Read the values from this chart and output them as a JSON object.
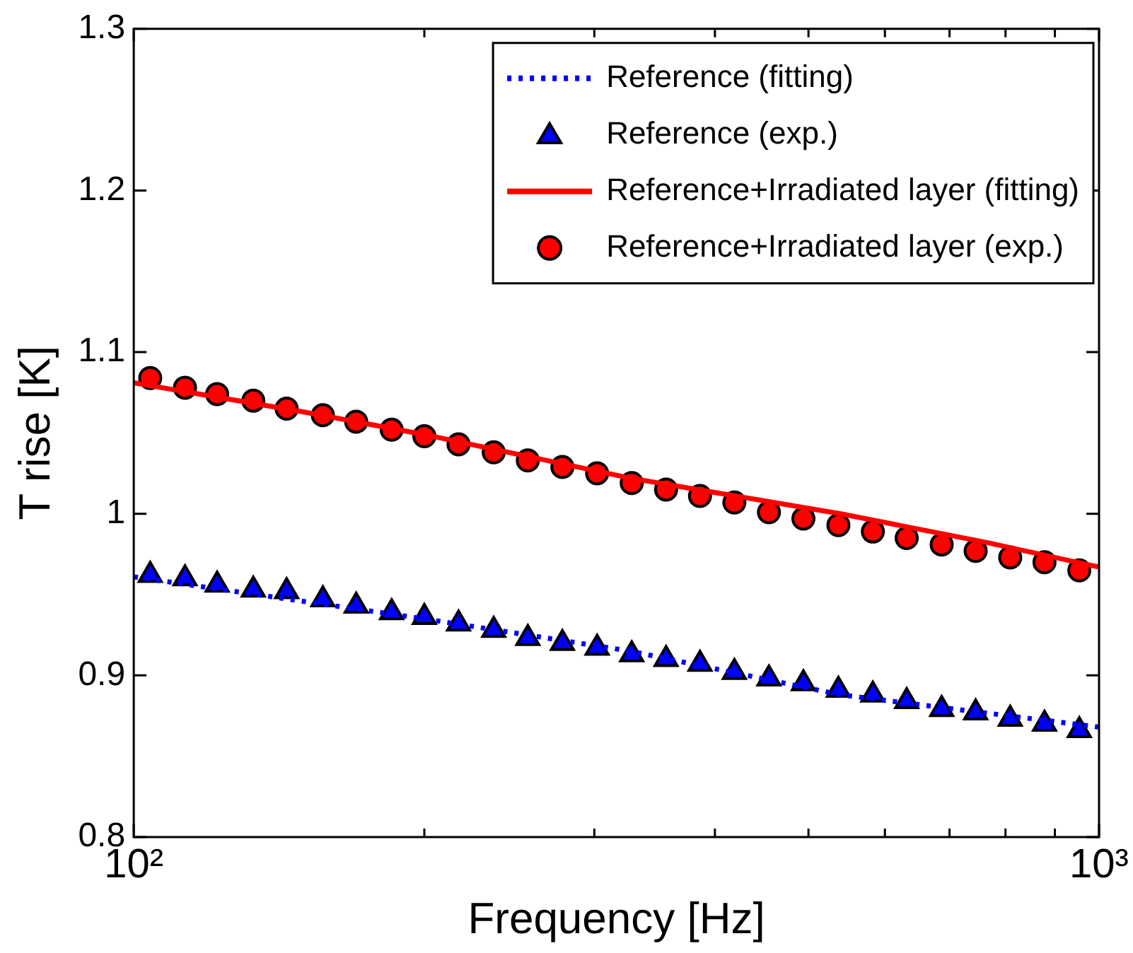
{
  "chart_data": {
    "type": "line",
    "xlabel": "Frequency [Hz]",
    "ylabel": "T rise [K]",
    "log": "x",
    "xlim": [
      100,
      1000
    ],
    "xticks": [
      {
        "value": 100,
        "label": "10²"
      },
      {
        "value": 200,
        "label": null
      },
      {
        "value": 300,
        "label": null
      },
      {
        "value": 400,
        "label": null
      },
      {
        "value": 500,
        "label": null
      },
      {
        "value": 600,
        "label": null
      },
      {
        "value": 700,
        "label": null
      },
      {
        "value": 800,
        "label": null
      },
      {
        "value": 900,
        "label": null
      },
      {
        "value": 1000,
        "label": "10³"
      }
    ],
    "ylim": [
      0.8,
      1.3
    ],
    "yticks": [
      0.8,
      0.9,
      1,
      1.1,
      1.2,
      1.3
    ],
    "grid": false,
    "legend": "top right",
    "series": [
      {
        "name": "Reference (fitting)",
        "type": "line",
        "color": "#0000ff",
        "line_style": "dotted",
        "marker": "none",
        "x": [
          100,
          200,
          327,
          540,
          1000
        ],
        "values": [
          0.961,
          0.935,
          0.915,
          0.888,
          0.868
        ]
      },
      {
        "name": "Reference (exp.)",
        "type": "scatter",
        "color": "#0000ff",
        "marker": "triangle",
        "x": [
          104,
          113,
          122,
          133,
          144,
          157,
          170,
          185,
          200,
          217,
          236,
          256,
          278,
          302,
          328,
          356,
          386,
          419,
          455,
          494,
          537,
          583,
          632,
          687,
          745,
          809,
          878,
          954
        ],
        "values": [
          0.962,
          0.96,
          0.956,
          0.953,
          0.952,
          0.947,
          0.943,
          0.939,
          0.936,
          0.932,
          0.928,
          0.923,
          0.92,
          0.917,
          0.913,
          0.91,
          0.907,
          0.902,
          0.898,
          0.895,
          0.891,
          0.888,
          0.884,
          0.879,
          0.877,
          0.873,
          0.87,
          0.866
        ]
      },
      {
        "name": "Reference+Irradiated layer (fitting)",
        "type": "line",
        "color": "#ff0000",
        "line_style": "solid",
        "marker": "none",
        "x": [
          100,
          150,
          200,
          327,
          540,
          768,
          1000
        ],
        "values": [
          1.081,
          1.063,
          1.049,
          1.022,
          1.0,
          0.982,
          0.967
        ]
      },
      {
        "name": "Reference+Irradiated layer (exp.)",
        "type": "scatter",
        "color": "#ff0000",
        "marker": "circle",
        "x": [
          104,
          113,
          122,
          133,
          144,
          157,
          170,
          185,
          200,
          217,
          236,
          256,
          278,
          302,
          328,
          356,
          386,
          419,
          455,
          494,
          537,
          583,
          632,
          687,
          745,
          809,
          878,
          954
        ],
        "values": [
          1.084,
          1.078,
          1.074,
          1.07,
          1.065,
          1.061,
          1.057,
          1.052,
          1.048,
          1.043,
          1.038,
          1.033,
          1.029,
          1.025,
          1.019,
          1.015,
          1.011,
          1.007,
          1.001,
          0.997,
          0.993,
          0.989,
          0.985,
          0.981,
          0.977,
          0.973,
          0.97,
          0.965
        ]
      }
    ]
  }
}
